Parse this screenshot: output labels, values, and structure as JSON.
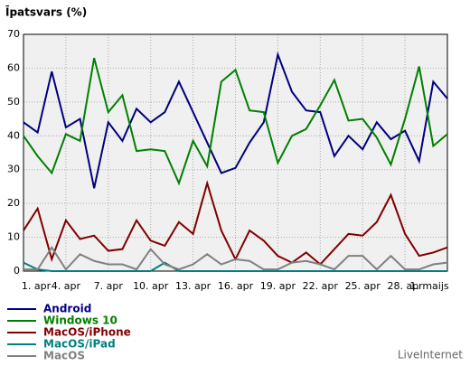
{
  "chart_data": {
    "type": "line",
    "title": "Īpatsvars (%)",
    "source": "LiveInternet",
    "categories": [
      "1. apr",
      null,
      null,
      "4. apr",
      null,
      null,
      "7. apr",
      null,
      null,
      "10. apr",
      null,
      null,
      "13. apr",
      null,
      null,
      "16. apr",
      null,
      null,
      "19. apr",
      null,
      null,
      "22. apr",
      null,
      null,
      "25. apr",
      null,
      null,
      "28. apr",
      null,
      null,
      "1. maijs"
    ],
    "ylim": [
      0,
      70
    ],
    "yticks": [
      0,
      10,
      20,
      30,
      40,
      50,
      60,
      70
    ],
    "grid": true,
    "series": [
      {
        "name": "Android",
        "color": "#000080",
        "values": [
          44,
          41,
          59,
          42.5,
          45,
          24.5,
          44,
          38.5,
          48,
          44,
          47,
          56,
          47,
          38,
          29,
          30.5,
          38,
          44,
          64,
          53,
          47.5,
          47,
          34,
          40,
          36,
          44,
          39,
          41.5,
          32.5,
          56,
          51
        ]
      },
      {
        "name": "Windows 10",
        "color": "#008000",
        "values": [
          40,
          34,
          29,
          40.5,
          38.5,
          63,
          47,
          52,
          35.5,
          36,
          35.5,
          26,
          38.5,
          31,
          56,
          59.5,
          47.5,
          47,
          32,
          40,
          42,
          49,
          56.5,
          44.5,
          45,
          39.5,
          31.5,
          45,
          60.5,
          37,
          40.5
        ]
      },
      {
        "name": "MacOS/iPhone",
        "color": "#800000",
        "values": [
          12,
          18.5,
          3.5,
          15,
          9.5,
          10.5,
          6,
          6.5,
          15,
          9,
          7.5,
          14.5,
          11,
          26,
          12,
          3.5,
          12,
          9,
          4.5,
          2.5,
          5.5,
          2,
          6.5,
          11,
          10.5,
          14.5,
          22.5,
          11,
          4.5,
          5.5,
          7
        ]
      },
      {
        "name": "MacOS/iPad",
        "color": "#008080",
        "values": [
          2.5,
          0.5,
          0,
          0,
          0,
          0,
          0,
          0,
          0,
          0,
          2.5,
          0,
          0,
          0,
          0,
          0,
          0,
          0,
          0,
          0,
          0,
          0,
          0,
          0,
          0,
          0,
          0,
          0,
          0,
          0,
          0
        ]
      },
      {
        "name": "MacOS",
        "color": "#808080",
        "values": [
          0.5,
          0.5,
          7,
          0.5,
          5,
          3,
          2,
          2,
          0.5,
          6.5,
          2,
          0.5,
          2,
          5,
          2,
          3.5,
          3,
          0.5,
          0.5,
          2.5,
          3,
          2,
          0.5,
          4.5,
          4.5,
          0.5,
          4.5,
          0.5,
          0.5,
          2,
          2.5
        ]
      }
    ]
  }
}
